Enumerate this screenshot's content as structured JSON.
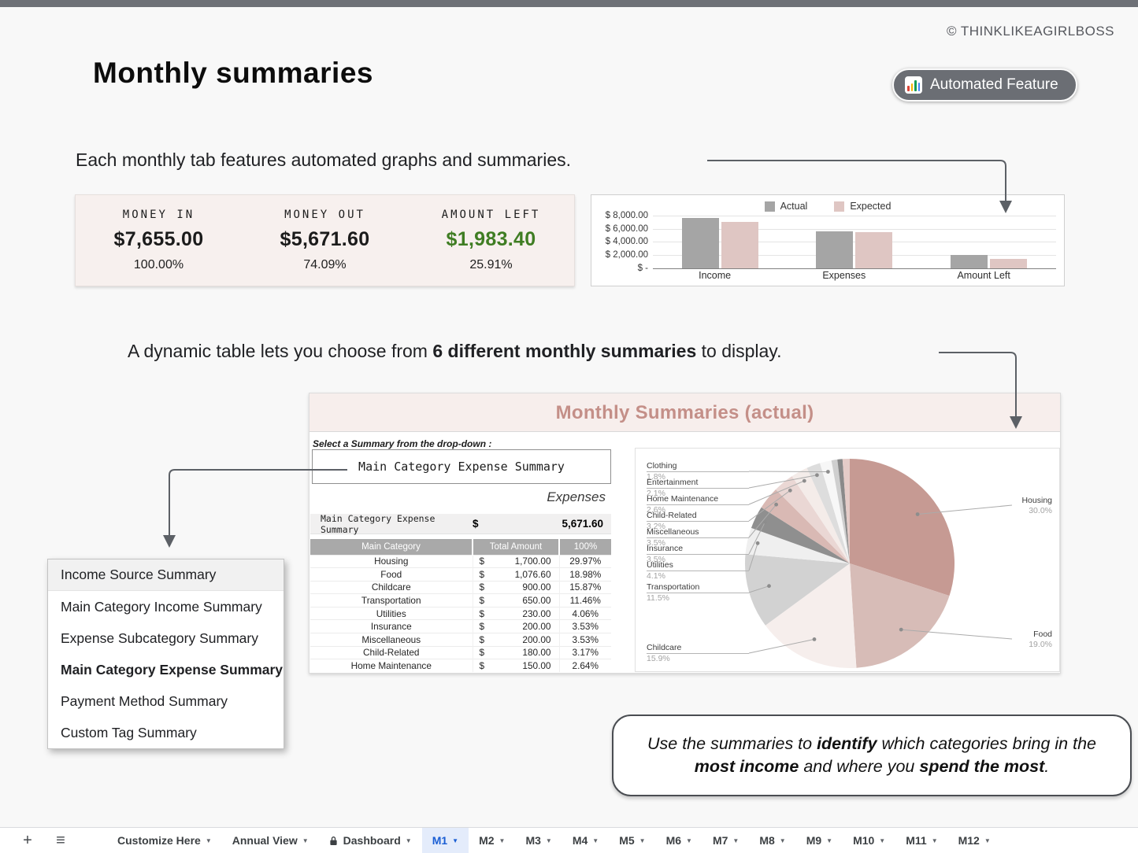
{
  "page": {
    "copyright": "© THINKLIKEAGIRLBOSS",
    "title": "Monthly summaries",
    "badge": {
      "label": "Automated Feature",
      "icon": "bar-chart-icon"
    },
    "caption1": "Each monthly tab features automated graphs and summaries.",
    "caption2": {
      "pre": "A dynamic table lets you choose from ",
      "bold": "6 different monthly summaries",
      "post": " to display."
    }
  },
  "colors": {
    "top_bar": "#6e7177",
    "badge_bg": "#6b6e74",
    "panel_header_bg": "#f7eeec",
    "panel_title_text": "#c48f88",
    "amount_left_green": "#3f7d23",
    "actual_gray": "#a5a5a5",
    "expected_pink": "#dfc6c3",
    "tab_active_blue": "#1a5ed4"
  },
  "summary_card": {
    "columns": [
      {
        "label": "MONEY IN",
        "value": "$7,655.00",
        "percent": "100.00%",
        "value_color": "#1b1b1b"
      },
      {
        "label": "MONEY OUT",
        "value": "$5,671.60",
        "percent": "74.09%",
        "value_color": "#1b1b1b"
      },
      {
        "label": "AMOUNT LEFT",
        "value": "$1,983.40",
        "percent": "25.91%",
        "value_color": "#3f7d23"
      }
    ]
  },
  "chart_data": [
    {
      "type": "bar",
      "title": "",
      "categories": [
        "Income",
        "Expenses",
        "Amount Left"
      ],
      "series": [
        {
          "name": "Actual",
          "color": "#a5a5a5",
          "values": [
            7655,
            5671.6,
            1983.4
          ]
        },
        {
          "name": "Expected",
          "color": "#dfc6c3",
          "values": [
            7100,
            5550,
            1450
          ]
        }
      ],
      "ylabel": "",
      "ylim": [
        0,
        8000
      ],
      "yticks": [
        {
          "label": "$ 8,000.00",
          "value": 8000
        },
        {
          "label": "$ 6,000.00",
          "value": 6000
        },
        {
          "label": "$ 4,000.00",
          "value": 4000
        },
        {
          "label": "$ 2,000.00",
          "value": 2000
        },
        {
          "label": "$ -",
          "value": 0
        }
      ],
      "legend_position": "top",
      "grid": true
    },
    {
      "type": "pie",
      "start_angle_deg": 0,
      "clockwise": true,
      "slices": [
        {
          "label": "Housing",
          "pct": 30.0,
          "color": "#c69a93",
          "side": "right"
        },
        {
          "label": "Food",
          "pct": 19.0,
          "color": "#d7bcb7",
          "side": "right"
        },
        {
          "label": "Childcare",
          "pct": 15.9,
          "color": "#f6eeec",
          "side": "left"
        },
        {
          "label": "Transportation",
          "pct": 11.5,
          "color": "#d2d2d2",
          "side": "left"
        },
        {
          "label": "Utilities",
          "pct": 4.1,
          "color": "#efefef",
          "side": "left"
        },
        {
          "label": "Insurance",
          "pct": 3.5,
          "color": "#8f8f8f",
          "side": "left"
        },
        {
          "label": "Miscellaneous",
          "pct": 3.5,
          "color": "#d9b9b4",
          "side": "left"
        },
        {
          "label": "Child-Related",
          "pct": 3.2,
          "color": "#ead7d4",
          "side": "left"
        },
        {
          "label": "Home Maintenance",
          "pct": 2.6,
          "color": "#f4ece9",
          "side": "left"
        },
        {
          "label": "Entertainment",
          "pct": 2.1,
          "color": "#dddddd",
          "side": "left"
        },
        {
          "label": "Clothing",
          "pct": 1.8,
          "color": "#f7f7f7",
          "side": "left"
        },
        {
          "label": "",
          "pct": 0.9,
          "color": "#cfcfcf",
          "side": "none"
        },
        {
          "label": "",
          "pct": 0.8,
          "color": "#8a8a8a",
          "side": "none"
        },
        {
          "label": "",
          "pct": 1.1,
          "color": "#e5ccc8",
          "side": "none"
        }
      ]
    }
  ],
  "summaries_panel": {
    "title": "Monthly Summaries (actual)",
    "select_label": "Select a Summary from the drop-down :",
    "dropdown_value": "Main Category Expense Summary",
    "section_label": "Expenses",
    "total_row": {
      "label": "Main Category Expense Summary",
      "currency": "$",
      "amount": "5,671.60"
    },
    "table": {
      "headers": [
        "Main Category",
        "Total Amount",
        "100%"
      ],
      "currency": "$",
      "rows": [
        [
          "Housing",
          "1,700.00",
          "29.97%"
        ],
        [
          "Food",
          "1,076.60",
          "18.98%"
        ],
        [
          "Childcare",
          "900.00",
          "15.87%"
        ],
        [
          "Transportation",
          "650.00",
          "11.46%"
        ],
        [
          "Utilities",
          "230.00",
          "4.06%"
        ],
        [
          "Insurance",
          "200.00",
          "3.53%"
        ],
        [
          "Miscellaneous",
          "200.00",
          "3.53%"
        ],
        [
          "Child-Related",
          "180.00",
          "3.17%"
        ],
        [
          "Home Maintenance",
          "150.00",
          "2.64%"
        ]
      ]
    }
  },
  "dropdown_menu": {
    "items": [
      {
        "label": "Income Source Summary",
        "highlighted": true,
        "bold": false
      },
      {
        "label": "Main Category Income Summary",
        "highlighted": false,
        "bold": false
      },
      {
        "label": "Expense Subcategory Summary",
        "highlighted": false,
        "bold": false
      },
      {
        "label": "Main Category Expense Summary",
        "highlighted": false,
        "bold": true
      },
      {
        "label": "Payment Method Summary",
        "highlighted": false,
        "bold": false
      },
      {
        "label": "Custom Tag Summary",
        "highlighted": false,
        "bold": false
      }
    ]
  },
  "tip_box": {
    "segments": [
      {
        "text": "Use the summaries to ",
        "bold": false
      },
      {
        "text": "identify",
        "bold": true
      },
      {
        "text": " which categories bring in the ",
        "bold": false
      },
      {
        "text": "most income",
        "bold": true
      },
      {
        "text": " and where you ",
        "bold": false
      },
      {
        "text": "spend the most",
        "bold": true
      },
      {
        "text": ".",
        "bold": false
      }
    ]
  },
  "sheet_tabs": {
    "add_icon": "plus-icon",
    "all_sheets_icon": "hamburger-icon",
    "tabs": [
      {
        "label": "Customize Here",
        "menu": true,
        "locked": false,
        "active": false
      },
      {
        "label": "Annual View",
        "menu": true,
        "locked": false,
        "active": false
      },
      {
        "label": "Dashboard",
        "menu": true,
        "locked": true,
        "active": false
      },
      {
        "label": "M1",
        "menu": true,
        "locked": false,
        "active": true
      },
      {
        "label": "M2",
        "menu": true,
        "locked": false,
        "active": false
      },
      {
        "label": "M3",
        "menu": true,
        "locked": false,
        "active": false
      },
      {
        "label": "M4",
        "menu": true,
        "locked": false,
        "active": false
      },
      {
        "label": "M5",
        "menu": true,
        "locked": false,
        "active": false
      },
      {
        "label": "M6",
        "menu": true,
        "locked": false,
        "active": false
      },
      {
        "label": "M7",
        "menu": true,
        "locked": false,
        "active": false
      },
      {
        "label": "M8",
        "menu": true,
        "locked": false,
        "active": false
      },
      {
        "label": "M9",
        "menu": true,
        "locked": false,
        "active": false
      },
      {
        "label": "M10",
        "menu": true,
        "locked": false,
        "active": false
      },
      {
        "label": "M11",
        "menu": true,
        "locked": false,
        "active": false
      },
      {
        "label": "M12",
        "menu": true,
        "locked": false,
        "active": false
      }
    ]
  }
}
